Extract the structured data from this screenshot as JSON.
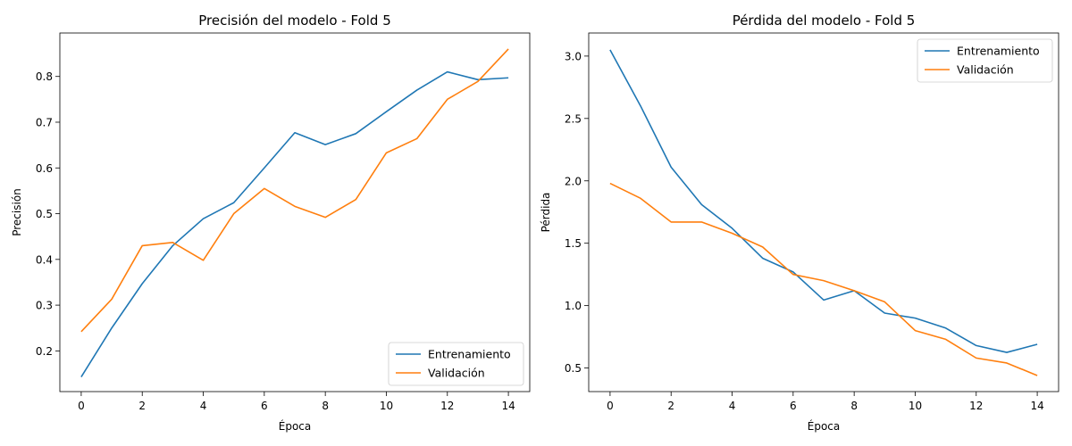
{
  "chart_data": [
    {
      "type": "line",
      "title": "Precisión del modelo - Fold 5",
      "xlabel": "Época",
      "ylabel": "Precisión",
      "xlim": [
        -0.7,
        14.7
      ],
      "ylim": [
        0.111,
        0.895
      ],
      "xticks": [
        0,
        2,
        4,
        6,
        8,
        10,
        12,
        14
      ],
      "yticks": [
        0.2,
        0.3,
        0.4,
        0.5,
        0.6,
        0.7,
        0.8
      ],
      "ytick_labels": [
        "0.2",
        "0.3",
        "0.4",
        "0.5",
        "0.6",
        "0.7",
        "0.8"
      ],
      "grid": false,
      "legend_position": "lower-right",
      "x": [
        0,
        1,
        2,
        3,
        4,
        5,
        6,
        7,
        8,
        9,
        10,
        11,
        12,
        13,
        14
      ],
      "series": [
        {
          "name": "Entrenamiento",
          "color": "#1f77b4",
          "values": [
            0.143,
            0.25,
            0.347,
            0.43,
            0.489,
            0.524,
            0.6,
            0.677,
            0.651,
            0.675,
            0.723,
            0.77,
            0.81,
            0.793,
            0.797
          ]
        },
        {
          "name": "Validación",
          "color": "#ff7f0e",
          "values": [
            0.242,
            0.313,
            0.43,
            0.437,
            0.398,
            0.5,
            0.555,
            0.516,
            0.492,
            0.531,
            0.633,
            0.664,
            0.75,
            0.789,
            0.86
          ]
        }
      ]
    },
    {
      "type": "line",
      "title": "Pérdida del modelo - Fold 5",
      "xlabel": "Época",
      "ylabel": "Pérdida",
      "xlim": [
        -0.7,
        14.7
      ],
      "ylim": [
        0.311,
        3.185
      ],
      "xticks": [
        0,
        2,
        4,
        6,
        8,
        10,
        12,
        14
      ],
      "yticks": [
        0.5,
        1.0,
        1.5,
        2.0,
        2.5,
        3.0
      ],
      "ytick_labels": [
        "0.5",
        "1.0",
        "1.5",
        "2.0",
        "2.5",
        "3.0"
      ],
      "grid": false,
      "legend_position": "upper-right",
      "x": [
        0,
        1,
        2,
        3,
        4,
        5,
        6,
        7,
        8,
        9,
        10,
        11,
        12,
        13,
        14
      ],
      "series": [
        {
          "name": "Entrenamiento",
          "color": "#1f77b4",
          "values": [
            3.05,
            2.6,
            2.11,
            1.81,
            1.62,
            1.38,
            1.27,
            1.045,
            1.12,
            0.94,
            0.9,
            0.82,
            0.68,
            0.625,
            0.69
          ]
        },
        {
          "name": "Validación",
          "color": "#ff7f0e",
          "values": [
            1.98,
            1.86,
            1.67,
            1.67,
            1.58,
            1.47,
            1.25,
            1.2,
            1.12,
            1.03,
            0.8,
            0.73,
            0.58,
            0.54,
            0.44
          ]
        }
      ]
    }
  ]
}
